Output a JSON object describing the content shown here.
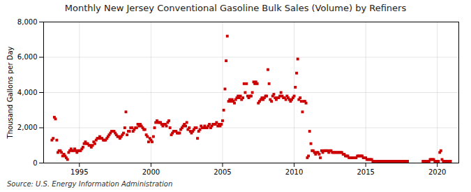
{
  "chart_data": {
    "type": "scatter",
    "title": "Monthly New Jersey Conventional Gasoline Bulk Sales (Volume) by Refiners",
    "ylabel": "Thousand Gallons per Day",
    "source": "Source: U.S. Energy Information Administration",
    "color": "#cc0000",
    "marker": "square",
    "grid": true,
    "xlim": [
      1992.5,
      2021.5
    ],
    "xticks": [
      1995,
      2000,
      2005,
      2010,
      2015,
      2020
    ],
    "ylim": [
      0,
      8000
    ],
    "yticks": [
      0,
      {
        "value": 2000,
        "label": "2,000"
      },
      {
        "value": 4000,
        "label": "4,000"
      },
      {
        "value": 6000,
        "label": "6,000"
      },
      {
        "value": 8000,
        "label": "8,000"
      }
    ],
    "x": [
      1993.08,
      1993.17,
      1993.25,
      1993.33,
      1993.42,
      1993.5,
      1993.58,
      1993.67,
      1993.75,
      1993.83,
      1993.92,
      1994.0,
      1994.08,
      1994.17,
      1994.25,
      1994.33,
      1994.42,
      1994.5,
      1994.58,
      1994.67,
      1994.75,
      1994.83,
      1994.92,
      1995.0,
      1995.08,
      1995.17,
      1995.25,
      1995.33,
      1995.42,
      1995.5,
      1995.58,
      1995.67,
      1995.75,
      1995.83,
      1995.92,
      1996.0,
      1996.08,
      1996.17,
      1996.25,
      1996.33,
      1996.42,
      1996.5,
      1996.58,
      1996.67,
      1996.75,
      1996.83,
      1996.92,
      1997.0,
      1997.08,
      1997.17,
      1997.25,
      1997.33,
      1997.42,
      1997.5,
      1997.58,
      1997.67,
      1997.75,
      1997.83,
      1997.92,
      1998.0,
      1998.08,
      1998.17,
      1998.25,
      1998.33,
      1998.42,
      1998.5,
      1998.58,
      1998.67,
      1998.75,
      1998.83,
      1998.92,
      1999.0,
      1999.08,
      1999.17,
      1999.25,
      1999.33,
      1999.42,
      1999.5,
      1999.58,
      1999.67,
      1999.75,
      1999.83,
      1999.92,
      2000.0,
      2000.08,
      2000.17,
      2000.25,
      2000.33,
      2000.42,
      2000.5,
      2000.58,
      2000.67,
      2000.75,
      2000.83,
      2000.92,
      2001.0,
      2001.08,
      2001.17,
      2001.25,
      2001.33,
      2001.42,
      2001.5,
      2001.58,
      2001.67,
      2001.75,
      2001.83,
      2001.92,
      2002.0,
      2002.08,
      2002.17,
      2002.25,
      2002.33,
      2002.42,
      2002.5,
      2002.58,
      2002.67,
      2002.75,
      2002.83,
      2002.92,
      2003.0,
      2003.08,
      2003.17,
      2003.25,
      2003.33,
      2003.42,
      2003.5,
      2003.58,
      2003.67,
      2003.75,
      2003.83,
      2003.92,
      2004.0,
      2004.08,
      2004.17,
      2004.25,
      2004.33,
      2004.42,
      2004.5,
      2004.58,
      2004.67,
      2004.75,
      2004.83,
      2004.92,
      2005.0,
      2005.08,
      2005.17,
      2005.25,
      2005.33,
      2005.42,
      2005.5,
      2005.58,
      2005.67,
      2005.75,
      2005.83,
      2005.92,
      2006.0,
      2006.08,
      2006.17,
      2006.25,
      2006.33,
      2006.42,
      2006.5,
      2006.58,
      2006.67,
      2006.75,
      2006.83,
      2006.92,
      2007.0,
      2007.08,
      2007.17,
      2007.25,
      2007.33,
      2007.42,
      2007.5,
      2007.58,
      2007.67,
      2007.75,
      2007.83,
      2007.92,
      2008.0,
      2008.08,
      2008.17,
      2008.25,
      2008.33,
      2008.42,
      2008.5,
      2008.58,
      2008.67,
      2008.75,
      2008.83,
      2008.92,
      2009.0,
      2009.08,
      2009.17,
      2009.25,
      2009.33,
      2009.42,
      2009.5,
      2009.58,
      2009.67,
      2009.75,
      2009.83,
      2009.92,
      2010.0,
      2010.08,
      2010.17,
      2010.25,
      2010.33,
      2010.42,
      2010.5,
      2010.58,
      2010.67,
      2010.75,
      2010.83,
      2010.92,
      2011.0,
      2011.08,
      2011.17,
      2011.25,
      2011.33,
      2011.42,
      2011.5,
      2011.58,
      2011.67,
      2011.75,
      2011.83,
      2011.92,
      2012.0,
      2012.08,
      2012.17,
      2012.25,
      2012.33,
      2012.42,
      2012.5,
      2012.58,
      2012.67,
      2012.75,
      2012.83,
      2012.92,
      2013.0,
      2013.08,
      2013.17,
      2013.25,
      2013.33,
      2013.42,
      2013.5,
      2013.58,
      2013.67,
      2013.75,
      2013.83,
      2013.92,
      2014.0,
      2014.08,
      2014.17,
      2014.25,
      2014.33,
      2014.42,
      2014.5,
      2014.58,
      2014.67,
      2014.75,
      2014.83,
      2014.92,
      2015.0,
      2015.08,
      2015.17,
      2015.25,
      2015.33,
      2015.42,
      2015.5,
      2015.58,
      2015.67,
      2015.75,
      2015.83,
      2015.92,
      2016.0,
      2016.08,
      2016.17,
      2016.25,
      2016.33,
      2016.42,
      2016.5,
      2016.58,
      2016.67,
      2016.75,
      2016.83,
      2016.92,
      2017.0,
      2017.08,
      2017.17,
      2017.25,
      2017.33,
      2017.42,
      2017.5,
      2017.58,
      2017.67,
      2017.75,
      2017.83,
      2017.92,
      2019.0,
      2019.08,
      2019.17,
      2019.25,
      2019.33,
      2019.42,
      2019.5,
      2019.58,
      2019.67,
      2019.75,
      2019.83,
      2019.92,
      2020.0,
      2020.08,
      2020.17,
      2020.25,
      2020.33,
      2020.42,
      2020.5,
      2020.58,
      2020.67,
      2020.75,
      2020.83,
      2020.92
    ],
    "values": [
      1300,
      1400,
      2600,
      2500,
      1300,
      600,
      700,
      700,
      600,
      400,
      500,
      400,
      300,
      200,
      600,
      700,
      800,
      700,
      700,
      800,
      700,
      600,
      700,
      700,
      700,
      800,
      900,
      1100,
      1200,
      1100,
      1100,
      1000,
      1000,
      900,
      1000,
      1200,
      1100,
      1300,
      1400,
      1400,
      1500,
      1400,
      1400,
      1300,
      1300,
      1300,
      1400,
      1500,
      1600,
      1700,
      1800,
      1800,
      1800,
      1700,
      1600,
      1500,
      1500,
      1400,
      1500,
      1600,
      1700,
      2000,
      2900,
      1600,
      1800,
      1800,
      2000,
      2000,
      1800,
      1900,
      2000,
      2000,
      2200,
      2100,
      2200,
      2100,
      2000,
      1900,
      1900,
      1600,
      1500,
      1200,
      1400,
      1300,
      1200,
      1500,
      2000,
      2300,
      2400,
      2300,
      2300,
      2300,
      2200,
      2100,
      2200,
      2200,
      2100,
      2300,
      2400,
      2000,
      1600,
      1700,
      1800,
      1800,
      1800,
      1700,
      1700,
      1700,
      1900,
      2000,
      2100,
      2200,
      2100,
      2300,
      1900,
      2000,
      1800,
      1700,
      1800,
      1900,
      2000,
      2000,
      1400,
      1800,
      1900,
      2100,
      2000,
      2000,
      2100,
      2000,
      2000,
      2100,
      2200,
      2000,
      2100,
      2200,
      2200,
      2200,
      2300,
      2100,
      2200,
      2100,
      2200,
      2400,
      3000,
      4200,
      5800,
      7200,
      3500,
      3600,
      3500,
      3600,
      3500,
      3400,
      3600,
      3700,
      3800,
      3700,
      3800,
      3600,
      3700,
      4500,
      4000,
      4500,
      3800,
      3700,
      3800,
      3800,
      4000,
      4600,
      4500,
      4600,
      4500,
      3400,
      3500,
      3600,
      3700,
      3600,
      3700,
      3800,
      3800,
      5300,
      4500,
      3600,
      3500,
      3800,
      3900,
      3700,
      3600,
      3700,
      3700,
      3800,
      4000,
      3800,
      3700,
      3700,
      3600,
      3800,
      3700,
      3600,
      3500,
      3600,
      3700,
      3800,
      4300,
      5100,
      5900,
      3600,
      3700,
      3500,
      2900,
      3500,
      3500,
      3400,
      300,
      400,
      1800,
      1100,
      700,
      700,
      600,
      500,
      600,
      600,
      500,
      300,
      700,
      600,
      700,
      700,
      700,
      700,
      600,
      700,
      700,
      600,
      600,
      600,
      600,
      600,
      600,
      600,
      600,
      600,
      500,
      500,
      400,
      400,
      400,
      300,
      300,
      300,
      300,
      300,
      300,
      300,
      400,
      400,
      400,
      400,
      400,
      300,
      300,
      300,
      200,
      200,
      200,
      200,
      200,
      100,
      100,
      100,
      100,
      100,
      100,
      100,
      100,
      100,
      100,
      100,
      100,
      100,
      100,
      100,
      100,
      100,
      100,
      100,
      100,
      100,
      100,
      100,
      100,
      100,
      100,
      100,
      100,
      100,
      100,
      100,
      100,
      100,
      100,
      100,
      100,
      200,
      200,
      200,
      200,
      100,
      100,
      100,
      100,
      600,
      700,
      200,
      100,
      100,
      100,
      100,
      100,
      100,
      100
    ]
  }
}
